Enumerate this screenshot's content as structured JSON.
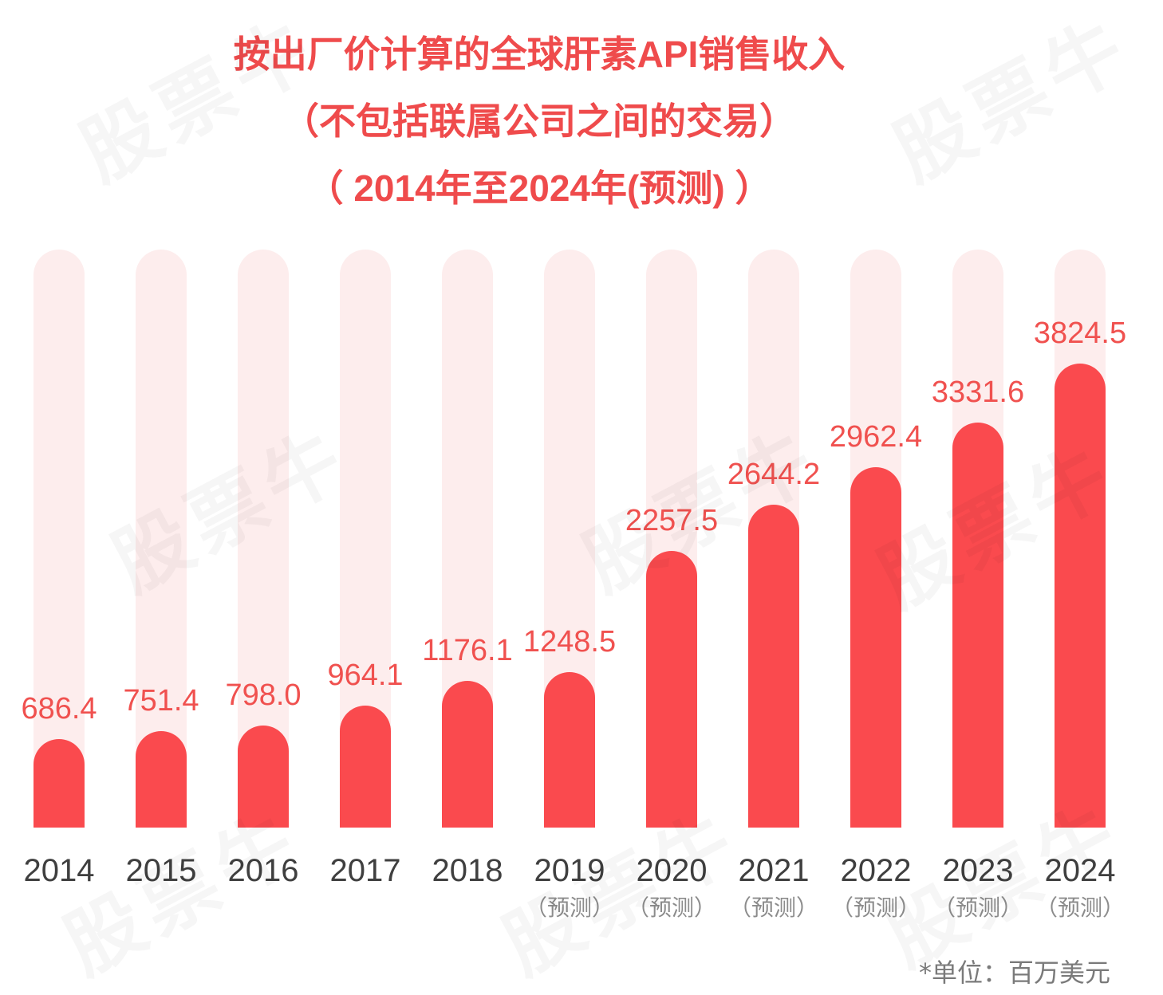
{
  "watermark": "股票牛",
  "colors": {
    "title": "#EF4B4C",
    "bar": "#FA4A4E",
    "track": "#FDEDED",
    "value_label": "#F0514F",
    "category_label": "#3F3F3F",
    "note": "#8C8C8C",
    "unit_note": "#7A7A7A"
  },
  "chart_data": {
    "type": "bar",
    "title": [
      "按出厂价计算的全球肝素API销售收入",
      "（不包括联属公司之间的交易）",
      "（ 2014年至2024年(预测) ）"
    ],
    "categories": [
      "2014",
      "2015",
      "2016",
      "2017",
      "2018",
      "2019",
      "2020",
      "2021",
      "2022",
      "2023",
      "2024"
    ],
    "notes": [
      null,
      null,
      null,
      null,
      null,
      "（预测）",
      "（预测）",
      "（预测）",
      "（预测）",
      "（预测）",
      "（预测）"
    ],
    "values": [
      686.4,
      751.4,
      798.0,
      964.1,
      1176.1,
      1248.5,
      2257.5,
      2644.2,
      2962.4,
      3331.6,
      3824.5
    ],
    "unit_note": "*单位：百万美元",
    "grid": false,
    "legend": "none"
  }
}
